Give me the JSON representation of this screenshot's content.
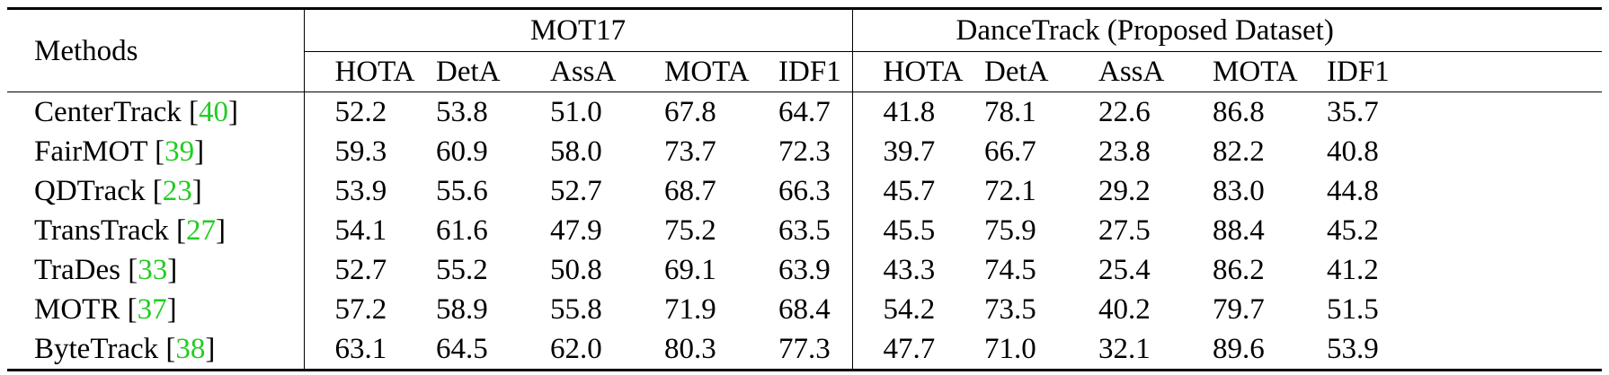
{
  "table": {
    "methods_header": "Methods",
    "groups": [
      {
        "name": "MOT17"
      },
      {
        "name": "DanceTrack (Proposed Dataset)"
      }
    ],
    "metrics": [
      "HOTA",
      "DetA",
      "AssA",
      "MOTA",
      "IDF1"
    ],
    "rows": [
      {
        "method": "CenterTrack",
        "cite": "40",
        "values": [
          "52.2",
          "53.8",
          "51.0",
          "67.8",
          "64.7",
          "41.8",
          "78.1",
          "22.6",
          "86.8",
          "35.7"
        ],
        "bold": [
          false,
          false,
          false,
          false,
          false,
          false,
          true,
          false,
          false,
          false
        ]
      },
      {
        "method": "FairMOT",
        "cite": "39",
        "values": [
          "59.3",
          "60.9",
          "58.0",
          "73.7",
          "72.3",
          "39.7",
          "66.7",
          "23.8",
          "82.2",
          "40.8"
        ],
        "bold": [
          false,
          false,
          false,
          false,
          false,
          false,
          false,
          false,
          false,
          false
        ]
      },
      {
        "method": "QDTrack",
        "cite": "23",
        "values": [
          "53.9",
          "55.6",
          "52.7",
          "68.7",
          "66.3",
          "45.7",
          "72.1",
          "29.2",
          "83.0",
          "44.8"
        ],
        "bold": [
          false,
          false,
          false,
          false,
          false,
          false,
          false,
          false,
          false,
          false
        ]
      },
      {
        "method": "TransTrack",
        "cite": "27",
        "values": [
          "54.1",
          "61.6",
          "47.9",
          "75.2",
          "63.5",
          "45.5",
          "75.9",
          "27.5",
          "88.4",
          "45.2"
        ],
        "bold": [
          false,
          false,
          false,
          false,
          false,
          false,
          false,
          false,
          false,
          false
        ]
      },
      {
        "method": "TraDes",
        "cite": "33",
        "values": [
          "52.7",
          "55.2",
          "50.8",
          "69.1",
          "63.9",
          "43.3",
          "74.5",
          "25.4",
          "86.2",
          "41.2"
        ],
        "bold": [
          false,
          false,
          false,
          false,
          false,
          false,
          false,
          false,
          false,
          false
        ]
      },
      {
        "method": "MOTR",
        "cite": "37",
        "values": [
          "57.2",
          "58.9",
          "55.8",
          "71.9",
          "68.4",
          "54.2",
          "73.5",
          "40.2",
          "79.7",
          "51.5"
        ],
        "bold": [
          false,
          false,
          false,
          false,
          false,
          true,
          false,
          true,
          false,
          false
        ]
      },
      {
        "method": "ByteTrack",
        "cite": "38",
        "values": [
          "63.1",
          "64.5",
          "62.0",
          "80.3",
          "77.3",
          "47.7",
          "71.0",
          "32.1",
          "89.6",
          "53.9"
        ],
        "bold": [
          true,
          true,
          true,
          true,
          true,
          false,
          false,
          false,
          true,
          true
        ]
      }
    ]
  },
  "colors": {
    "citation": "#22cc22",
    "text": "#000000"
  }
}
